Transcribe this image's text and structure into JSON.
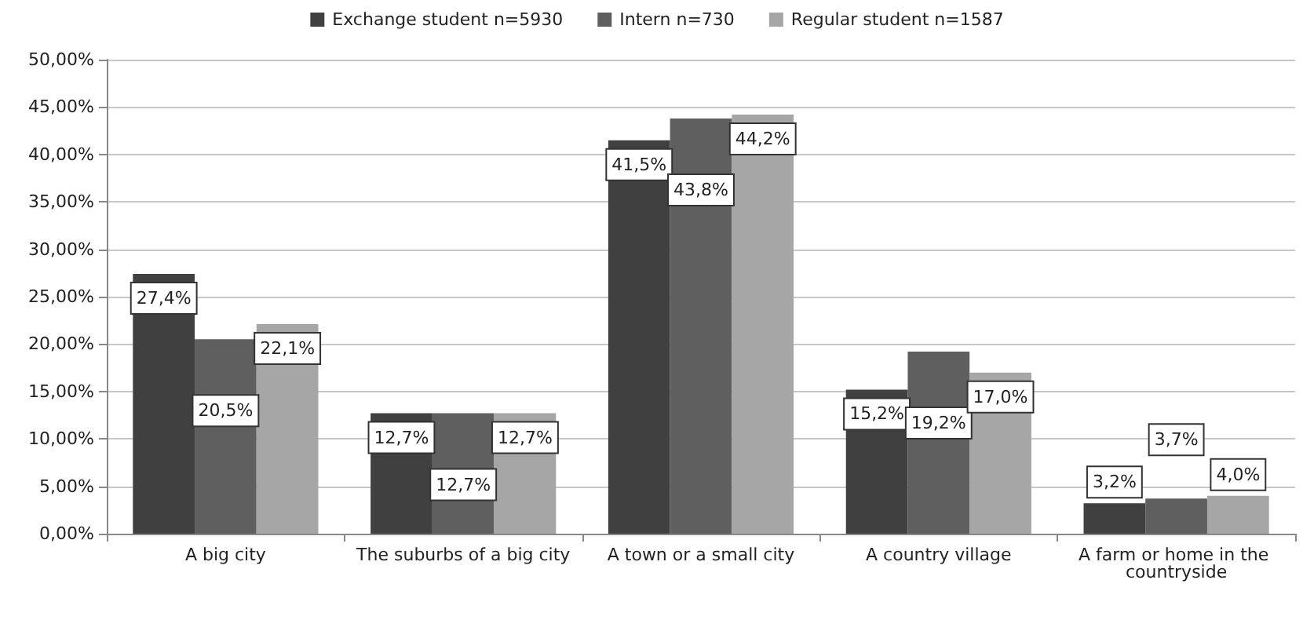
{
  "chart_data": {
    "type": "bar",
    "categories": [
      "A big city",
      "The suburbs of a big city",
      "A town or a small city",
      "A country village",
      "A farm or home in the countryside"
    ],
    "series": [
      {
        "name": "Exchange student n=5930",
        "color": "#404040",
        "values": [
          27.4,
          12.7,
          41.5,
          15.2,
          3.2
        ],
        "value_labels": [
          "27,4%",
          "12,7%",
          "41,5%",
          "15,2%",
          "3,2%"
        ]
      },
      {
        "name": "Intern n=730",
        "color": "#5f5f5f",
        "values": [
          20.5,
          12.7,
          43.8,
          19.2,
          3.7
        ],
        "value_labels": [
          "20,5%",
          "12,7%",
          "43,8%",
          "19,2%",
          "3,7%"
        ]
      },
      {
        "name": "Regular student n=1587",
        "color": "#a6a6a6",
        "values": [
          22.1,
          12.7,
          44.2,
          17.0,
          4.0
        ],
        "value_labels": [
          "22,1%",
          "12,7%",
          "44,2%",
          "17,0%",
          "4,0%"
        ]
      }
    ],
    "ylim": [
      0,
      50
    ],
    "yticks": [
      {
        "value": 0,
        "label": "0,00%"
      },
      {
        "value": 5,
        "label": "5,00%"
      },
      {
        "value": 10,
        "label": "10,00%"
      },
      {
        "value": 15,
        "label": "15,00%"
      },
      {
        "value": 20,
        "label": "20,00%"
      },
      {
        "value": 25,
        "label": "25,00%"
      },
      {
        "value": 30,
        "label": "30,00%"
      },
      {
        "value": 35,
        "label": "35,00%"
      },
      {
        "value": 40,
        "label": "40,00%"
      },
      {
        "value": 45,
        "label": "45,00%"
      },
      {
        "value": 50,
        "label": "50,00%"
      }
    ],
    "grid": "y",
    "legend": "top"
  }
}
